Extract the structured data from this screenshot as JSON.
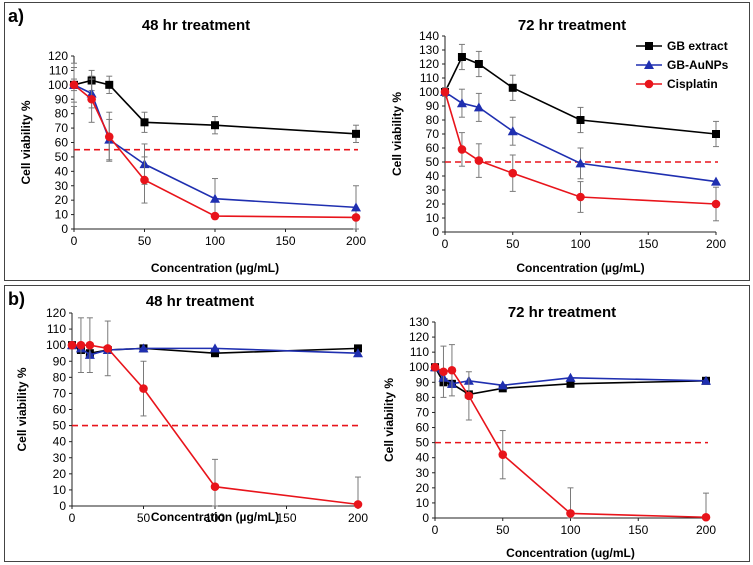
{
  "figure": {
    "panel_a_label": "a)",
    "panel_b_label": "b)"
  },
  "colors": {
    "gb_extract": "#000000",
    "gb_aunps": "#1f2fb0",
    "cisplatin": "#e8141b",
    "threshold": "#e8141b",
    "error_bar": "#7a7a7a",
    "axis": "#222222"
  },
  "legend": {
    "items": [
      "GB extract",
      "GB-AuNPs",
      "Cisplatin"
    ],
    "placement": "top-right of panel a 72 hr chart"
  },
  "chart_data": [
    {
      "id": "a48",
      "type": "line",
      "panel": "a)",
      "title": "48 hr treatment",
      "xlabel": "Concentration (µg/mL)",
      "ylabel": "Cell viability %",
      "xlim": [
        0,
        200
      ],
      "ylim": [
        0,
        120
      ],
      "xticks": [
        0,
        50,
        100,
        150,
        200
      ],
      "yticks": [
        0,
        10,
        20,
        30,
        40,
        50,
        60,
        70,
        80,
        90,
        100,
        110,
        120
      ],
      "threshold": 55,
      "series": [
        {
          "name": "GB extract",
          "marker": "square",
          "x": [
            0,
            12.5,
            25,
            50,
            100,
            200
          ],
          "y": [
            100,
            103,
            100,
            74,
            72,
            66
          ],
          "err": [
            12,
            7,
            6,
            7,
            6,
            6
          ]
        },
        {
          "name": "GB-AuNPs",
          "marker": "triangle",
          "x": [
            0,
            12.5,
            25,
            50,
            100,
            200
          ],
          "y": [
            100,
            94,
            62,
            45,
            21,
            15
          ],
          "err": [
            4,
            10,
            14,
            14,
            14,
            15
          ]
        },
        {
          "name": "Cisplatin",
          "marker": "circle",
          "x": [
            0,
            12.5,
            25,
            50,
            100,
            200
          ],
          "y": [
            100,
            90,
            64,
            34,
            9,
            8
          ],
          "err": [
            15,
            16,
            17,
            16,
            0,
            0
          ]
        }
      ]
    },
    {
      "id": "a72",
      "type": "line",
      "panel": "a)",
      "title": "72 hr treatment",
      "xlabel": "Concentration (µg/mL)",
      "ylabel": "Cell viability %",
      "xlim": [
        0,
        200
      ],
      "ylim": [
        0,
        140
      ],
      "xticks": [
        0,
        50,
        100,
        150,
        200
      ],
      "yticks": [
        0,
        10,
        20,
        30,
        40,
        50,
        60,
        70,
        80,
        90,
        100,
        110,
        120,
        130,
        140
      ],
      "threshold": 50,
      "series": [
        {
          "name": "GB extract",
          "marker": "square",
          "x": [
            0,
            12.5,
            25,
            50,
            100,
            200
          ],
          "y": [
            100,
            125,
            120,
            103,
            80,
            70
          ],
          "err": [
            3,
            9,
            9,
            9,
            9,
            9
          ]
        },
        {
          "name": "GB-AuNPs",
          "marker": "triangle",
          "x": [
            0,
            12.5,
            25,
            50,
            100,
            200
          ],
          "y": [
            100,
            92,
            89,
            72,
            49,
            36
          ],
          "err": [
            3,
            10,
            10,
            10,
            11,
            0
          ]
        },
        {
          "name": "Cisplatin",
          "marker": "circle",
          "x": [
            0,
            12.5,
            25,
            50,
            100,
            200
          ],
          "y": [
            100,
            59,
            51,
            42,
            25,
            20
          ],
          "err": [
            3,
            12,
            12,
            13,
            11,
            12
          ]
        }
      ]
    },
    {
      "id": "b48",
      "type": "line",
      "panel": "b)",
      "title": "48 hr treatment",
      "xlabel": "Concentration (µg/mL)",
      "ylabel": "Cell viability %",
      "xlim": [
        0,
        200
      ],
      "ylim": [
        0,
        120
      ],
      "xticks": [
        0,
        50,
        100,
        150,
        200
      ],
      "yticks": [
        0,
        10,
        20,
        30,
        40,
        50,
        60,
        70,
        80,
        90,
        100,
        110,
        120
      ],
      "threshold": 50,
      "series": [
        {
          "name": "GB extract",
          "marker": "square",
          "x": [
            0,
            6.25,
            12.5,
            25,
            50,
            100,
            200
          ],
          "y": [
            100,
            97,
            95,
            97,
            98,
            95,
            98
          ],
          "err": [
            0,
            0,
            0,
            0,
            0,
            0,
            0
          ]
        },
        {
          "name": "GB-AuNPs",
          "marker": "triangle",
          "x": [
            0,
            6.25,
            12.5,
            25,
            50,
            100,
            200
          ],
          "y": [
            100,
            98,
            94,
            97,
            98,
            98,
            95
          ],
          "err": [
            0,
            0,
            0,
            0,
            0,
            0,
            0
          ]
        },
        {
          "name": "Cisplatin",
          "marker": "circle",
          "x": [
            0,
            6.25,
            12.5,
            25,
            50,
            100,
            200
          ],
          "y": [
            100,
            100,
            100,
            98,
            73,
            12,
            1
          ],
          "err": [
            0,
            17,
            17,
            17,
            17,
            17,
            17
          ]
        }
      ]
    },
    {
      "id": "b72",
      "type": "line",
      "panel": "b)",
      "title": "72 hr treatment",
      "xlabel": "Concentration (ug/mL)",
      "ylabel": "Cell viability %",
      "xlim": [
        0,
        200
      ],
      "ylim": [
        0,
        130
      ],
      "xticks": [
        0,
        50,
        100,
        150,
        200
      ],
      "yticks": [
        0,
        10,
        20,
        30,
        40,
        50,
        60,
        70,
        80,
        90,
        100,
        110,
        120,
        130
      ],
      "threshold": 50,
      "series": [
        {
          "name": "GB extract",
          "marker": "square",
          "x": [
            0,
            6.25,
            12.5,
            25,
            50,
            100,
            200
          ],
          "y": [
            100,
            90,
            89,
            82,
            86,
            89,
            91
          ],
          "err": [
            0,
            0,
            0,
            0,
            0,
            0,
            0
          ]
        },
        {
          "name": "GB-AuNPs",
          "marker": "triangle",
          "x": [
            0,
            6.25,
            12.5,
            25,
            50,
            100,
            200
          ],
          "y": [
            100,
            93,
            89,
            91,
            88,
            93,
            91
          ],
          "err": [
            0,
            0,
            0,
            0,
            0,
            0,
            0
          ]
        },
        {
          "name": "Cisplatin",
          "marker": "circle",
          "x": [
            0,
            6.25,
            12.5,
            25,
            50,
            100,
            200
          ],
          "y": [
            100,
            97,
            98,
            81,
            42,
            3,
            0.5
          ],
          "err": [
            0,
            17,
            17,
            16,
            16,
            17,
            16
          ]
        }
      ]
    }
  ]
}
